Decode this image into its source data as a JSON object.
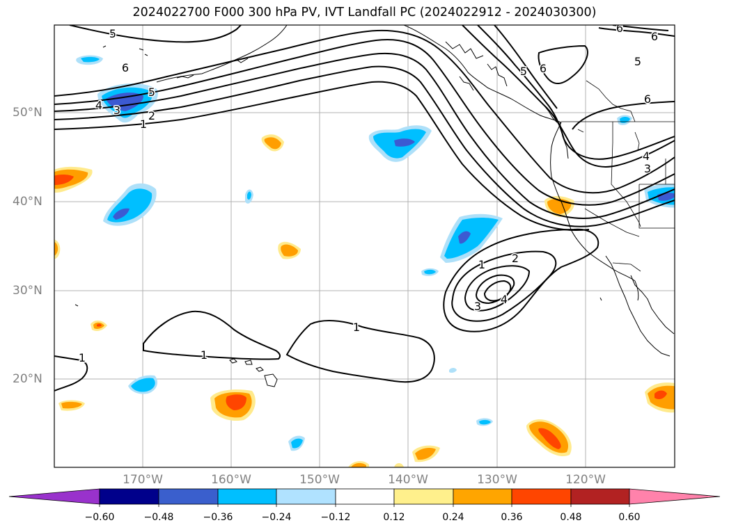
{
  "title": "2024022700 F000 300 hPa PV, IVT Landfall PC (2024022912 - 2024030300)",
  "map": {
    "lon_labels": [
      "170°W",
      "160°W",
      "150°W",
      "140°W",
      "130°W",
      "120°W"
    ],
    "lat_labels": [
      "50°N",
      "40°N",
      "30°N",
      "20°N"
    ],
    "contour_labels": [
      "5",
      "6",
      "4",
      "3",
      "2",
      "1",
      "5",
      "5",
      "6",
      "6",
      "6",
      "5",
      "6",
      "4",
      "3",
      "1",
      "2",
      "3",
      "4",
      "1",
      "1",
      "1"
    ],
    "colors": {
      "pos_light": "#ffea8c",
      "pos_mid": "#ff9e00",
      "pos_strong": "#ff4500",
      "neg_light": "#aee0f9",
      "neg_mid": "#00bfff",
      "neg_strong": "#3c5ad2"
    }
  },
  "colorbar": {
    "ticks": [
      "−0.60",
      "−0.48",
      "−0.36",
      "−0.24",
      "−0.12",
      "0.12",
      "0.24",
      "0.36",
      "0.48",
      "0.60"
    ],
    "colors": [
      "#9932cc",
      "#00008b",
      "#3a5fcd",
      "#00bfff",
      "#b0e2ff",
      "#ffffff",
      "#fff08c",
      "#ffa500",
      "#ff4500",
      "#b22222",
      "#ff82ab"
    ]
  }
}
